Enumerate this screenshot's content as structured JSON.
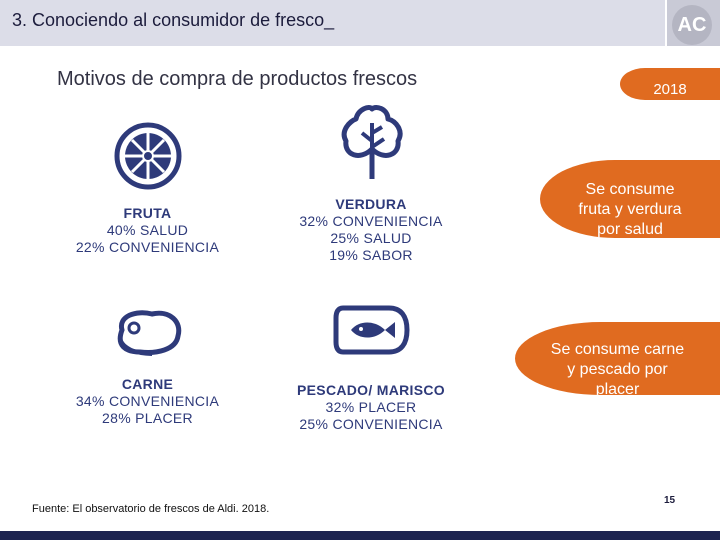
{
  "header": {
    "title": "3. Conociendo al consumidor de fresco_"
  },
  "logo": {
    "text": "AC"
  },
  "subtitle": "Motivos de compra de productos frescos",
  "badge": "2018",
  "callouts": [
    {
      "lines": [
        "Se consume",
        "fruta y verdura",
        "por salud"
      ]
    },
    {
      "lines": [
        "Se consume carne",
        "y pescado por",
        "placer"
      ]
    }
  ],
  "categories": [
    {
      "icon": "orange-slice-icon",
      "name": "FRUTA",
      "lines": [
        "40% SALUD",
        "22% CONVENIENCIA"
      ]
    },
    {
      "icon": "leaf-icon",
      "name": "VERDURA",
      "lines": [
        "32% CONVENIENCIA",
        "25% SALUD",
        "19% SABOR"
      ]
    },
    {
      "icon": "steak-icon",
      "name": "CARNE",
      "lines": [
        "34% CONVENIENCIA",
        "28% PLACER"
      ]
    },
    {
      "icon": "fish-icon",
      "name": "PESCADO/ MARISCO",
      "lines": [
        "32% PLACER",
        "25% CONVENIENCIA"
      ]
    }
  ],
  "colors": {
    "accent": "#e06b20",
    "icon": "#2e3a7a",
    "bar": "#1c2350"
  },
  "footer": {
    "source": "Fuente: El observatorio de frescos de Aldi. 2018.",
    "page": "15"
  }
}
